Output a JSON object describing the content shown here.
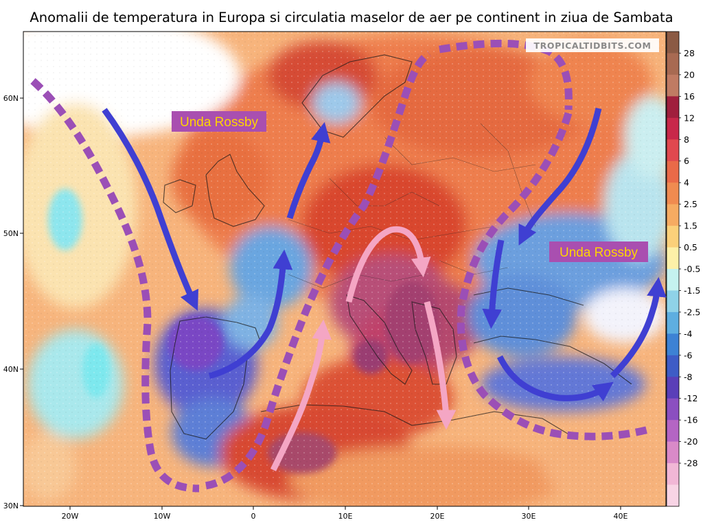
{
  "title": "Anomalii de temperatura in Europa si circulatia maselor de aer pe continent in ziua de Sambata",
  "watermark": "TROPICALTIDBITS.COM",
  "annotations": [
    {
      "id": "rossby-west",
      "text": "Unda Rossby"
    },
    {
      "id": "rossby-east",
      "text": "Unda Rossby"
    }
  ],
  "axes": {
    "lat_ticks": [
      "60N",
      "50N",
      "40N",
      "30N"
    ],
    "lon_ticks": [
      "20W",
      "10W",
      "0",
      "10E",
      "20E",
      "30E",
      "40E"
    ]
  },
  "colorbar": {
    "labels": [
      "28",
      "20",
      "16",
      "12",
      "8",
      "6",
      "4",
      "2.5",
      "1.5",
      "0.5",
      "-0.5",
      "-1.5",
      "-2.5",
      "-4",
      "-6",
      "-8",
      "-12",
      "-16",
      "-20",
      "-28"
    ]
  },
  "colors": {
    "arrow_blue": "#3f3fd2",
    "arrow_purple": "#9b4fb6",
    "arrow_pink": "#f4a6c4",
    "label_box": "#a94fb0",
    "label_text": "#ffd400"
  }
}
